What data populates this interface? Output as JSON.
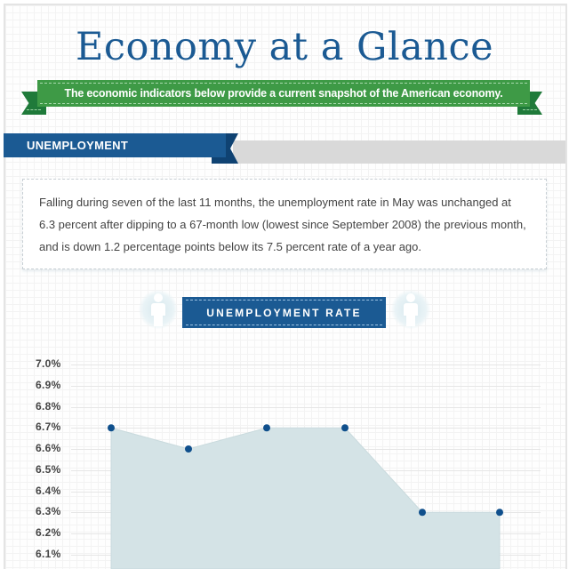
{
  "header": {
    "title": "Economy at a Glance",
    "ribbon_text": "The economic indicators below provide a current snapshot of the American economy."
  },
  "section": {
    "title": "UNEMPLOYMENT",
    "description": "Falling during seven of the last 11 months, the unemployment rate in May was unchanged at 6.3 percent after dipping to a 67-month low (lowest since September 2008) the previous month, and is down 1.2 percentage points below its 7.5 percent rate of a year ago."
  },
  "chart_label": {
    "title": "UNEMPLOYMENT RATE",
    "icons": [
      "person-icon",
      "person-icon"
    ]
  },
  "colors": {
    "title_blue": "#1b5a93",
    "ribbon_green": "#3e9a46",
    "area_fill": "#d4e3e6",
    "marker": "#0f4f8c"
  },
  "chart_data": {
    "type": "area",
    "title": "UNEMPLOYMENT RATE",
    "xlabel": "",
    "ylabel": "",
    "y_tick_labels": [
      "7.0%",
      "6.9%",
      "6.8%",
      "6.7%",
      "6.6%",
      "6.5%",
      "6.4%",
      "6.3%",
      "6.2%",
      "6.1%"
    ],
    "ylim": [
      6.0,
      7.0
    ],
    "grid": true,
    "x_tick_labels_visible": false,
    "series": [
      {
        "name": "Unemployment rate",
        "values": [
          6.7,
          6.6,
          6.7,
          6.7,
          6.3,
          6.3
        ]
      }
    ]
  }
}
